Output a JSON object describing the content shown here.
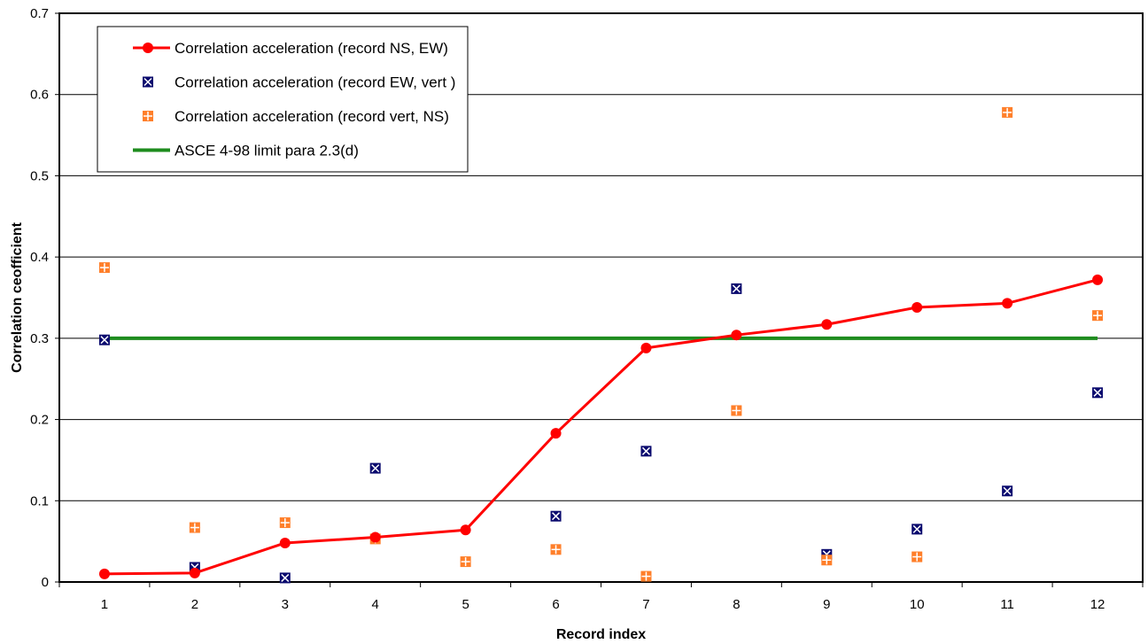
{
  "chart_data": {
    "type": "line",
    "title": "",
    "xlabel": "Record index",
    "ylabel": "Correlation ceofficient",
    "categories": [
      "1",
      "2",
      "3",
      "4",
      "5",
      "6",
      "7",
      "8",
      "9",
      "10",
      "11",
      "12"
    ],
    "ylim": [
      0,
      0.7
    ],
    "yticks": [
      "0",
      "0.1",
      "0.2",
      "0.3",
      "0.4",
      "0.5",
      "0.6",
      "0.7"
    ],
    "ytick_values": [
      0,
      0.1,
      0.2,
      0.3,
      0.4,
      0.5,
      0.6,
      0.7
    ],
    "grid": "horizontal",
    "legend_position": "top-left",
    "series": [
      {
        "name": "Correlation acceleration (record NS, EW)",
        "kind": "line-marker",
        "color": "#ff0000",
        "values": [
          0.01,
          0.011,
          0.048,
          0.055,
          0.064,
          0.183,
          0.288,
          0.304,
          0.317,
          0.338,
          0.343,
          0.372
        ]
      },
      {
        "name": "Correlation acceleration (record EW, vert )",
        "kind": "marker-x",
        "color": "#0a0a6e",
        "values": [
          0.298,
          0.018,
          0.005,
          0.14,
          null,
          0.081,
          0.161,
          0.361,
          0.034,
          0.065,
          0.112,
          0.233
        ]
      },
      {
        "name": "Correlation acceleration (record vert, NS)",
        "kind": "marker-plus",
        "color": "#ff7f2a",
        "values": [
          0.387,
          0.067,
          0.073,
          0.053,
          0.025,
          0.04,
          0.007,
          0.211,
          0.027,
          0.031,
          0.578,
          0.328
        ]
      },
      {
        "name": "ASCE 4-98 limit para 2.3(d)",
        "kind": "hline",
        "color": "#1e8c1e",
        "values": [
          0.3,
          0.3,
          0.3,
          0.3,
          0.3,
          0.3,
          0.3,
          0.3,
          0.3,
          0.3,
          0.3,
          0.3
        ]
      }
    ]
  }
}
